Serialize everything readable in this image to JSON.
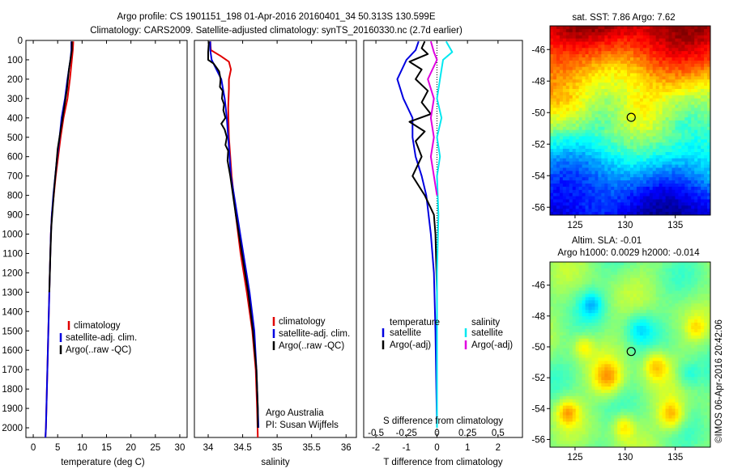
{
  "header": {
    "line1": "Argo profile: CS 1901151_198 01-Apr-2016 20160401_34 50.313S 130.599E",
    "line2": "Climatology: CARS2009. Satellite-adjusted climatology: synTS_20160330.nc (2.7d earlier)"
  },
  "colors": {
    "climatology": "#e00000",
    "satellite": "#0000e0",
    "argo": "#000000",
    "sat_salinity": "#00e8f0",
    "argo_salinity": "#e000e0"
  },
  "depth_axis": {
    "ylim": [
      0,
      2050
    ],
    "ticks": [
      "0",
      "100",
      "200",
      "300",
      "400",
      "500",
      "600",
      "700",
      "800",
      "900",
      "1000",
      "1100",
      "1200",
      "1300",
      "1400",
      "1500",
      "1600",
      "1700",
      "1800",
      "1900",
      "2000"
    ]
  },
  "chart_data": [
    {
      "type": "line",
      "id": "temperature",
      "xlabel": "temperature (deg C)",
      "xlim": [
        -1.5,
        31.5
      ],
      "xticks": [
        "0",
        "5",
        "10",
        "15",
        "20",
        "25",
        "30"
      ],
      "legend": [
        "climatology",
        "satellite-adj. clim.",
        "Argo(..raw -QC)"
      ],
      "series": [
        {
          "name": "climatology",
          "color": "#e00000",
          "points": [
            [
              8.2,
              5
            ],
            [
              8.1,
              50
            ],
            [
              7.9,
              100
            ],
            [
              7.5,
              200
            ],
            [
              7.0,
              300
            ],
            [
              6.2,
              400
            ],
            [
              5.6,
              500
            ],
            [
              5.1,
              600
            ],
            [
              4.6,
              700
            ],
            [
              4.2,
              800
            ],
            [
              3.8,
              900
            ],
            [
              3.6,
              1000
            ],
            [
              3.4,
              1200
            ],
            [
              3.2,
              1400
            ],
            [
              3.0,
              1600
            ],
            [
              2.8,
              1800
            ],
            [
              2.6,
              2000
            ],
            [
              2.5,
              2050
            ]
          ]
        },
        {
          "name": "satellite-adj. clim.",
          "color": "#0000e0",
          "points": [
            [
              7.8,
              5
            ],
            [
              7.8,
              50
            ],
            [
              7.6,
              100
            ],
            [
              7.0,
              200
            ],
            [
              6.5,
              300
            ],
            [
              5.8,
              400
            ],
            [
              5.4,
              500
            ],
            [
              4.9,
              600
            ],
            [
              4.5,
              700
            ],
            [
              4.1,
              800
            ],
            [
              3.8,
              900
            ],
            [
              3.6,
              1000
            ],
            [
              3.4,
              1200
            ],
            [
              3.2,
              1400
            ],
            [
              3.0,
              1600
            ],
            [
              2.8,
              1800
            ],
            [
              2.6,
              2000
            ],
            [
              2.5,
              2050
            ]
          ]
        },
        {
          "name": "Argo(..raw -QC)",
          "color": "#000000",
          "points": [
            [
              7.9,
              5
            ],
            [
              7.9,
              50
            ],
            [
              7.6,
              100
            ],
            [
              7.3,
              150
            ],
            [
              6.9,
              250
            ],
            [
              6.5,
              320
            ],
            [
              5.9,
              420
            ],
            [
              5.5,
              480
            ],
            [
              5.0,
              560
            ],
            [
              4.7,
              650
            ],
            [
              4.3,
              760
            ],
            [
              4.0,
              860
            ],
            [
              3.7,
              960
            ],
            [
              3.5,
              1100
            ],
            [
              3.3,
              1300
            ]
          ]
        }
      ]
    },
    {
      "type": "line",
      "id": "salinity",
      "xlabel": "salinity",
      "xlim": [
        33.8,
        36.15
      ],
      "xticks": [
        "34",
        "34.5",
        "35",
        "35.5",
        "36"
      ],
      "legend": [
        "climatology",
        "satellite-adj. clim.",
        "Argo(..raw -QC)"
      ],
      "annotation": [
        "Argo Australia",
        "PI: Susan Wijffels"
      ],
      "series": [
        {
          "name": "climatology",
          "color": "#e00000",
          "points": [
            [
              34.03,
              5
            ],
            [
              34.04,
              50
            ],
            [
              34.18,
              80
            ],
            [
              34.3,
              110
            ],
            [
              34.33,
              150
            ],
            [
              34.3,
              200
            ],
            [
              34.3,
              250
            ],
            [
              34.29,
              350
            ],
            [
              34.3,
              500
            ],
            [
              34.34,
              700
            ],
            [
              34.4,
              900
            ],
            [
              34.47,
              1100
            ],
            [
              34.56,
              1300
            ],
            [
              34.64,
              1500
            ],
            [
              34.69,
              1700
            ],
            [
              34.71,
              1900
            ],
            [
              34.72,
              2050
            ]
          ]
        },
        {
          "name": "satellite-adj. clim.",
          "color": "#0000e0",
          "points": [
            [
              34.03,
              5
            ],
            [
              34.03,
              50
            ],
            [
              34.05,
              100
            ],
            [
              34.12,
              150
            ],
            [
              34.19,
              200
            ],
            [
              34.24,
              300
            ],
            [
              34.27,
              400
            ],
            [
              34.29,
              500
            ],
            [
              34.33,
              700
            ],
            [
              34.42,
              900
            ],
            [
              34.51,
              1100
            ],
            [
              34.6,
              1300
            ],
            [
              34.67,
              1500
            ],
            [
              34.7,
              1700
            ],
            [
              34.72,
              1900
            ],
            [
              34.73,
              2000
            ]
          ]
        },
        {
          "name": "Argo(..raw -QC)",
          "color": "#000000",
          "points": [
            [
              34.01,
              5
            ],
            [
              34.0,
              60
            ],
            [
              34.0,
              100
            ],
            [
              34.08,
              120
            ],
            [
              34.12,
              140
            ],
            [
              34.16,
              160
            ],
            [
              34.18,
              200
            ],
            [
              34.17,
              240
            ],
            [
              34.21,
              260
            ],
            [
              34.2,
              300
            ],
            [
              34.23,
              330
            ],
            [
              34.22,
              360
            ],
            [
              34.25,
              400
            ],
            [
              34.19,
              430
            ],
            [
              34.24,
              460
            ],
            [
              34.27,
              500
            ],
            [
              34.25,
              540
            ],
            [
              34.29,
              570
            ],
            [
              34.28,
              620
            ],
            [
              34.32,
              700
            ],
            [
              34.4,
              900
            ],
            [
              34.49,
              1100
            ],
            [
              34.58,
              1300
            ],
            [
              34.65,
              1500
            ],
            [
              34.7,
              1700
            ],
            [
              34.72,
              1900
            ],
            [
              34.72,
              2000
            ]
          ]
        }
      ]
    },
    {
      "type": "line",
      "id": "difference",
      "xlabel": "T difference from climatology",
      "x2label": "S difference from climatology",
      "xlim": [
        -2.4,
        2.8
      ],
      "xticks": [
        "-2",
        "-1",
        "0",
        "1",
        "2"
      ],
      "x2ticks": [
        "-0.5",
        "-0.25",
        "0",
        "0.25",
        "0.5"
      ],
      "legend_title_left": "temperature",
      "legend_title_right": "salinity",
      "legend_left": [
        "satellite",
        "Argo(-adj)"
      ],
      "legend_right": [
        "satellite",
        "Argo(-adj)"
      ],
      "series": [
        {
          "name": "temperature satellite",
          "color": "#0000e0",
          "points": [
            [
              -0.6,
              5
            ],
            [
              -0.7,
              50
            ],
            [
              -1.0,
              100
            ],
            [
              -1.3,
              200
            ],
            [
              -1.1,
              300
            ],
            [
              -0.8,
              400
            ],
            [
              -0.8,
              500
            ],
            [
              -0.7,
              600
            ],
            [
              -0.5,
              700
            ],
            [
              -0.35,
              800
            ],
            [
              -0.2,
              1000
            ],
            [
              -0.1,
              1200
            ],
            [
              -0.05,
              1500
            ],
            [
              -0.02,
              1800
            ],
            [
              0,
              2000
            ]
          ]
        },
        {
          "name": "temperature Argo(-adj)",
          "color": "#000000",
          "points": [
            [
              -0.4,
              5
            ],
            [
              -0.5,
              40
            ],
            [
              -0.3,
              70
            ],
            [
              -0.9,
              110
            ],
            [
              -0.5,
              150
            ],
            [
              -0.7,
              200
            ],
            [
              -0.3,
              260
            ],
            [
              -0.5,
              320
            ],
            [
              -0.2,
              380
            ],
            [
              -0.9,
              420
            ],
            [
              -0.4,
              470
            ],
            [
              -0.7,
              520
            ],
            [
              -0.5,
              600
            ],
            [
              -0.8,
              700
            ],
            [
              -0.4,
              800
            ],
            [
              -0.1,
              900
            ],
            [
              -0.05,
              1000
            ],
            [
              0,
              1300
            ]
          ]
        },
        {
          "name": "salinity satellite",
          "color": "#00e8f0",
          "points": [
            [
              0.3,
              5
            ],
            [
              0.5,
              60
            ],
            [
              0.2,
              100
            ],
            [
              0.1,
              200
            ],
            [
              0.0,
              300
            ],
            [
              0.15,
              400
            ],
            [
              0.0,
              500
            ],
            [
              0.1,
              600
            ],
            [
              0.0,
              700
            ],
            [
              0.05,
              900
            ],
            [
              0.0,
              1200
            ],
            [
              0.0,
              1600
            ],
            [
              0.0,
              2000
            ]
          ]
        },
        {
          "name": "salinity Argo(-adj)",
          "color": "#e000e0",
          "points": [
            [
              -0.2,
              5
            ],
            [
              -0.1,
              60
            ],
            [
              0.0,
              100
            ],
            [
              -0.3,
              200
            ],
            [
              -0.1,
              300
            ],
            [
              -0.2,
              400
            ],
            [
              -0.1,
              500
            ],
            [
              -0.2,
              600
            ],
            [
              -0.1,
              700
            ],
            [
              0.0,
              800
            ]
          ]
        }
      ]
    },
    {
      "type": "heatmap",
      "id": "sst_map",
      "title": "sat. SST: 7.86  Argo: 7.62",
      "xlim": [
        122.5,
        138.5
      ],
      "ylim": [
        -56.5,
        -44.5
      ],
      "xticks": [
        "125",
        "130",
        "135"
      ],
      "yticks": [
        "-46",
        "-48",
        "-50",
        "-52",
        "-54",
        "-56"
      ],
      "marker": {
        "lon": 130.6,
        "lat": -50.3
      }
    },
    {
      "type": "heatmap",
      "id": "sla_map",
      "title": "Altim. SLA: -0.01",
      "subtitle": "Argo h1000: 0.0029 h2000: -0.014",
      "xlim": [
        122.5,
        138.5
      ],
      "ylim": [
        -56.5,
        -44.5
      ],
      "xticks": [
        "125",
        "130",
        "135"
      ],
      "yticks": [
        "-46",
        "-48",
        "-50",
        "-52",
        "-54",
        "-56"
      ],
      "marker": {
        "lon": 130.6,
        "lat": -50.3
      }
    }
  ],
  "footer_stamp": "©IMOS 06-Apr-2016 20:42:06"
}
